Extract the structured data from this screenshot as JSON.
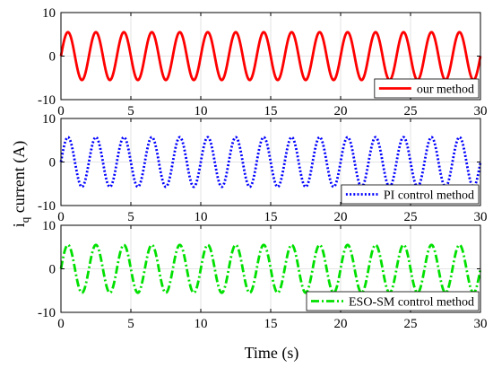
{
  "figure": {
    "ylabel": "i",
    "ylabel_sub": "q",
    "ylabel_rest": " current (A)",
    "xlabel": "Time (s)"
  },
  "chart_data": [
    {
      "type": "line",
      "xlim": [
        0,
        30
      ],
      "ylim": [
        -10,
        10
      ],
      "xticks": [
        0,
        5,
        10,
        15,
        20,
        25,
        30
      ],
      "yticks": [
        -10,
        0,
        10
      ],
      "grid": true,
      "legend_position": "bottom-right",
      "series": [
        {
          "name": "our method",
          "color": "#ff0000",
          "style": "solid",
          "amplitude": 5.5,
          "offset": 0,
          "period": 2,
          "phase": 0
        }
      ]
    },
    {
      "type": "line",
      "xlim": [
        0,
        30
      ],
      "ylim": [
        -10,
        10
      ],
      "xticks": [
        0,
        5,
        10,
        15,
        20,
        25,
        30
      ],
      "yticks": [
        -10,
        0,
        10
      ],
      "grid": true,
      "legend_position": "bottom-right",
      "series": [
        {
          "name": "PI control method",
          "color": "#0000ff",
          "style": "dotted",
          "amplitude": 5.7,
          "offset": 0,
          "period": 2,
          "phase": 0
        }
      ]
    },
    {
      "type": "line",
      "xlim": [
        0,
        30
      ],
      "ylim": [
        -10,
        10
      ],
      "xticks": [
        0,
        5,
        10,
        15,
        20,
        25,
        30
      ],
      "yticks": [
        -10,
        0,
        10
      ],
      "grid": true,
      "legend_position": "bottom-right",
      "series": [
        {
          "name": "ESO-SM control method",
          "color": "#00e000",
          "style": "dashdot",
          "amplitude": 5.5,
          "offset": 0,
          "period": 2,
          "phase": 0
        }
      ]
    }
  ]
}
